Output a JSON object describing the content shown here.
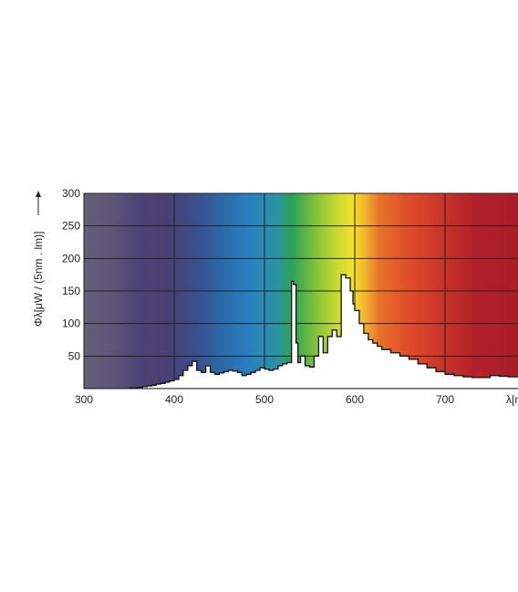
{
  "chart_data": {
    "type": "area",
    "title": "",
    "xlabel": "λ[nm]",
    "ylabel": "Φλ[μW / (5nm . lm)]",
    "xlim": [
      300,
      780
    ],
    "ylim": [
      0,
      300
    ],
    "x_ticks": [
      300,
      400,
      500,
      600,
      700
    ],
    "y_ticks": [
      50,
      100,
      150,
      200,
      250,
      300
    ],
    "grid": true,
    "background": "visible spectrum color gradient",
    "colors": {
      "violet": "#4a3f72",
      "blue": "#2a80c0",
      "green": "#2aa35a",
      "yellow": "#f2e22a",
      "orange": "#e8742a",
      "red": "#b3202a",
      "curve_fill": "#ffffff",
      "grid": "#222222"
    },
    "series": [
      {
        "x": [
          300,
          340,
          350,
          360,
          365,
          370,
          375,
          380,
          385,
          390,
          395,
          400,
          405,
          410,
          415,
          420,
          425,
          430,
          435,
          440,
          445,
          450,
          455,
          460,
          465,
          470,
          475,
          480,
          485,
          490,
          495,
          500,
          505,
          510,
          515,
          520,
          525,
          530,
          532,
          535,
          537,
          540,
          545,
          550,
          555,
          560,
          565,
          570,
          575,
          580,
          585,
          590,
          595,
          598,
          600,
          605,
          610,
          615,
          620,
          625,
          630,
          640,
          650,
          660,
          670,
          680,
          690,
          700,
          710,
          720,
          730,
          740,
          750,
          760,
          770,
          780
        ],
        "y": [
          0,
          0,
          1,
          2,
          3,
          4,
          5,
          7,
          8,
          10,
          12,
          14,
          20,
          28,
          35,
          42,
          28,
          25,
          35,
          25,
          22,
          24,
          26,
          28,
          27,
          25,
          20,
          22,
          25,
          28,
          32,
          30,
          28,
          30,
          35,
          38,
          40,
          165,
          160,
          70,
          40,
          50,
          35,
          33,
          50,
          80,
          55,
          80,
          90,
          80,
          175,
          170,
          150,
          130,
          120,
          100,
          85,
          75,
          70,
          65,
          60,
          55,
          50,
          45,
          38,
          32,
          26,
          22,
          20,
          18,
          17,
          17,
          20,
          19,
          18,
          18
        ]
      }
    ]
  }
}
